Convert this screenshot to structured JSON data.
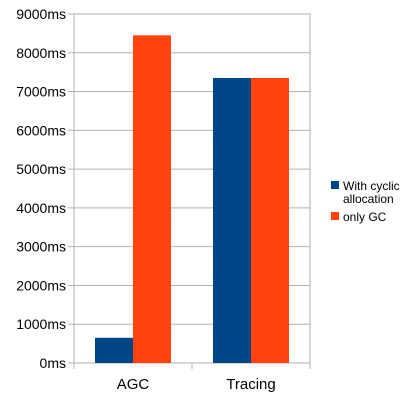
{
  "chart_data": {
    "type": "bar",
    "title": "",
    "xlabel": "",
    "ylabel": "",
    "categories": [
      "AGC",
      "Tracing"
    ],
    "series": [
      {
        "name": "With cyclic allocation",
        "values": [
          650,
          7350
        ],
        "color": "#004586"
      },
      {
        "name": "only GC",
        "values": [
          8450,
          7350
        ],
        "color": "#ff420e"
      }
    ],
    "ylim": [
      0,
      9000
    ],
    "yticks": [
      "0ms",
      "1000ms",
      "2000ms",
      "3000ms",
      "4000ms",
      "5000ms",
      "6000ms",
      "7000ms",
      "8000ms",
      "9000ms"
    ],
    "grid": true,
    "legend_position": "right",
    "legend_lines": [
      [
        "With cyclic",
        "allocation"
      ],
      [
        "only GC"
      ]
    ]
  }
}
